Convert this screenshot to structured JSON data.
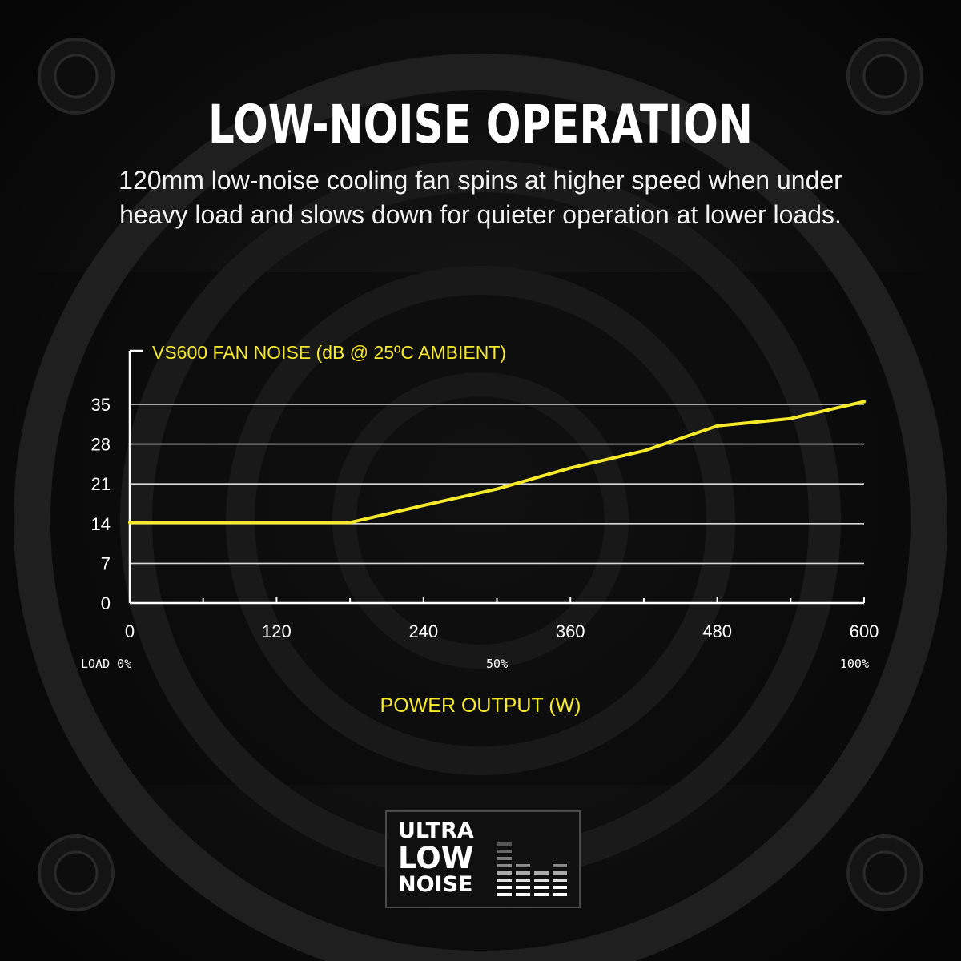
{
  "headline": "LOW-NOISE OPERATION",
  "subheadline_line1": "120mm low-noise cooling fan spins at higher speed when under",
  "subheadline_line2": "heavy load and slows down for quieter operation at lower loads.",
  "chart_data": {
    "type": "line",
    "title": "VS600 FAN NOISE (dB @ 25ºC AMBIENT)",
    "xlabel": "POWER OUTPUT (W)",
    "ylabel": "",
    "x_ticks": [
      0,
      120,
      240,
      360,
      480,
      600
    ],
    "y_ticks": [
      0,
      7,
      14,
      21,
      28,
      35
    ],
    "xlim": [
      0,
      600
    ],
    "ylim": [
      0,
      35
    ],
    "load_labels": [
      {
        "x": 0,
        "text": "LOAD 0%"
      },
      {
        "x": 300,
        "text": "50%"
      },
      {
        "x": 600,
        "text": "100%"
      }
    ],
    "grid": true,
    "series": [
      {
        "x": [
          0,
          180,
          240,
          300,
          360,
          420,
          480,
          540,
          600
        ],
        "y": [
          14.2,
          14.2,
          17.2,
          20.1,
          23.8,
          26.8,
          31.2,
          32.5,
          35.5
        ]
      }
    ],
    "line_color": "#f5e92a",
    "text_color": "#ffffff",
    "grid_color": "#d8d8d8"
  },
  "badge": {
    "line1": "ULTRA",
    "line2": "LOW",
    "line3": "NOISE"
  }
}
